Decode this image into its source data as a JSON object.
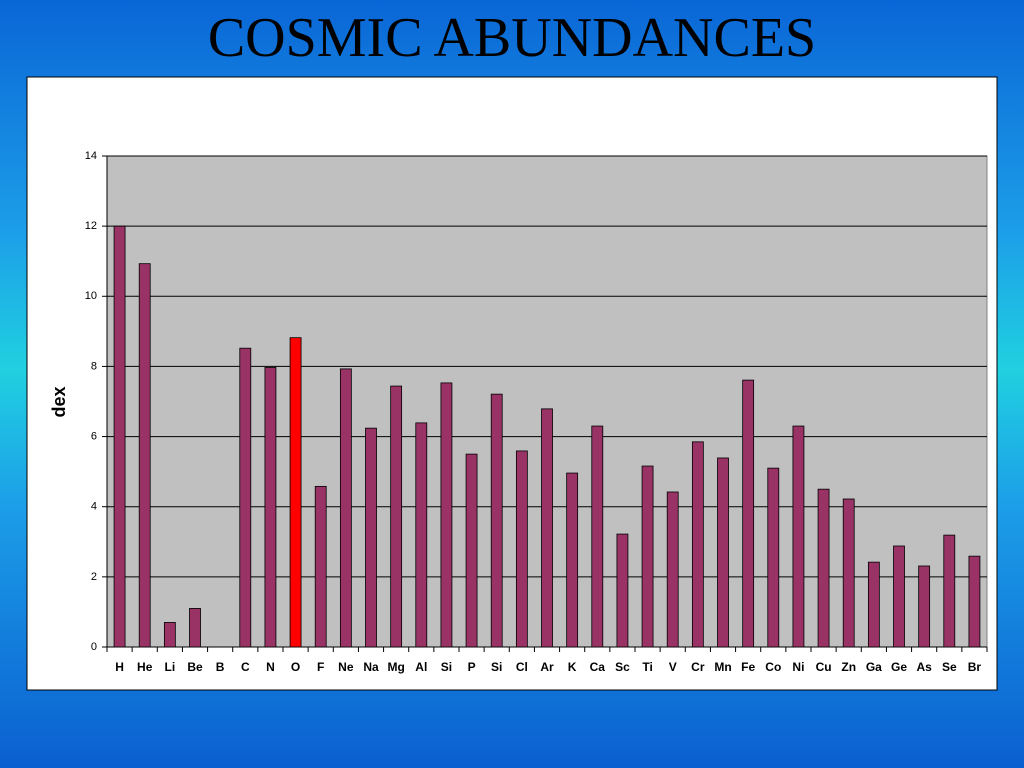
{
  "chart_data": {
    "type": "bar",
    "title": "COSMIC ABUNDANCES",
    "y_label": "dex",
    "categories": [
      "H",
      "He",
      "Li",
      "Be",
      "B",
      "C",
      "N",
      "O",
      "F",
      "Ne",
      "Na",
      "Mg",
      "Al",
      "Si",
      "P",
      "Si",
      "Cl",
      "Ar",
      "K",
      "Ca",
      "Sc",
      "Ti",
      "V",
      "Cr",
      "Mn",
      "Fe",
      "Co",
      "Ni",
      "Cu",
      "Zn",
      "Ga",
      "Ge",
      "As",
      "Se",
      "Br"
    ],
    "values": [
      12.0,
      10.93,
      0.7,
      1.1,
      null,
      8.52,
      7.97,
      8.82,
      4.58,
      7.93,
      6.24,
      7.44,
      6.39,
      7.53,
      5.5,
      7.21,
      5.59,
      6.79,
      4.96,
      6.3,
      3.22,
      5.16,
      4.42,
      5.85,
      5.39,
      7.61,
      5.1,
      6.3,
      4.5,
      4.22,
      2.42,
      2.88,
      2.31,
      3.19,
      2.59
    ],
    "colors": [
      "#993366",
      "#993366",
      "#993366",
      "#993366",
      "#993366",
      "#993366",
      "#993366",
      "#ff0000",
      "#993366",
      "#993366",
      "#993366",
      "#993366",
      "#993366",
      "#993366",
      "#993366",
      "#993366",
      "#993366",
      "#993366",
      "#993366",
      "#993366",
      "#993366",
      "#993366",
      "#993366",
      "#993366",
      "#993366",
      "#993366",
      "#993366",
      "#993366",
      "#993366",
      "#993366",
      "#993366",
      "#993366",
      "#993366",
      "#993366",
      "#993366"
    ],
    "ylim": [
      0,
      14
    ],
    "yticks": [
      0,
      2,
      4,
      6,
      8,
      10,
      12,
      14
    ],
    "grid": true
  }
}
